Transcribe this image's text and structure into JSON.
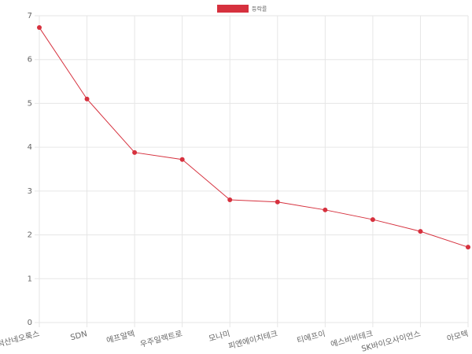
{
  "chart_data": {
    "type": "line",
    "categories": [
      "덕산네오룩스",
      "SDN",
      "에프알텍",
      "우주일렉트로",
      "모나미",
      "피엔에이치테크",
      "티에프이",
      "에스비비테크",
      "SK바이오사이언스",
      "아모텍"
    ],
    "series": [
      {
        "name": "등락률",
        "color": "#d6313e",
        "values": [
          6.73,
          5.1,
          3.88,
          3.72,
          2.8,
          2.75,
          2.57,
          2.35,
          2.08,
          1.72
        ]
      }
    ],
    "ylim": [
      0,
      7
    ],
    "yticks": [
      0,
      1,
      2,
      3,
      4,
      5,
      6,
      7
    ],
    "grid": true,
    "legend": "top"
  }
}
